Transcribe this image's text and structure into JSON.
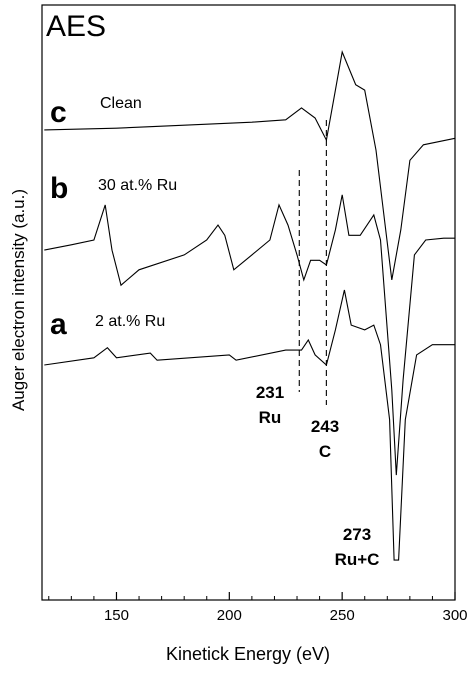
{
  "chart_data": {
    "type": "line",
    "panel_label": "AES",
    "x_label": "Kinetick Energy (eV)",
    "y_label": "Auger electron intensity (a.u.)",
    "xlim": [
      117,
      300
    ],
    "ylim": [
      0,
      100
    ],
    "xticks": [
      150,
      200,
      250,
      300
    ],
    "xminorticks": [
      120,
      130,
      140,
      160,
      170,
      180,
      190,
      210,
      220,
      230,
      240,
      260,
      270,
      280,
      290
    ],
    "color": "#000000",
    "series": [
      {
        "letter": "c",
        "name": "Clean",
        "x": [
          118,
          150,
          180,
          210,
          225,
          232,
          238,
          243,
          247,
          250,
          256,
          260,
          265,
          272,
          276,
          280,
          286,
          300
        ],
        "values": [
          79.0,
          79.3,
          79.8,
          80.3,
          80.7,
          82.7,
          81.0,
          77.3,
          85.7,
          92.1,
          86.6,
          85.7,
          75.6,
          53.8,
          62.2,
          73.9,
          76.5,
          77.6
        ]
      },
      {
        "letter": "b",
        "name": "30 at.% Ru",
        "x": [
          118,
          130,
          140,
          145,
          148,
          152,
          160,
          180,
          190,
          195,
          198,
          202,
          210,
          218,
          222,
          226,
          230,
          233,
          236,
          240,
          243,
          247,
          250,
          253,
          258,
          264,
          267,
          272,
          274,
          277,
          282,
          287,
          295,
          300
        ],
        "values": [
          58.8,
          59.7,
          60.5,
          66.4,
          58.8,
          52.9,
          55.5,
          58.0,
          60.5,
          63.0,
          61.3,
          55.5,
          58.0,
          60.5,
          66.4,
          63.0,
          58.0,
          53.8,
          57.1,
          57.1,
          56.3,
          62.2,
          68.1,
          61.3,
          61.3,
          64.7,
          60.5,
          35.3,
          21.0,
          37.0,
          58.0,
          60.5,
          60.8,
          60.8
        ]
      },
      {
        "letter": "a",
        "name": "2 at.% Ru",
        "x": [
          118,
          140,
          146,
          150,
          165,
          168,
          200,
          203,
          225,
          232,
          235,
          238,
          243,
          247,
          251,
          254,
          260,
          264,
          267,
          271,
          273,
          275,
          278,
          283,
          290,
          300
        ],
        "values": [
          39.5,
          40.7,
          42.4,
          40.7,
          41.5,
          40.3,
          41.2,
          40.3,
          42.0,
          42.0,
          43.7,
          41.2,
          39.5,
          45.4,
          52.1,
          46.2,
          45.4,
          46.2,
          42.9,
          30.3,
          6.7,
          6.7,
          30.3,
          41.2,
          42.9,
          42.9
        ]
      }
    ],
    "annotations": [
      {
        "x": 231,
        "label": "Ru",
        "dashed": true
      },
      {
        "x": 243,
        "label": "C",
        "dashed": true
      },
      {
        "x": 273,
        "label": "Ru+C",
        "dashed": false
      }
    ]
  }
}
